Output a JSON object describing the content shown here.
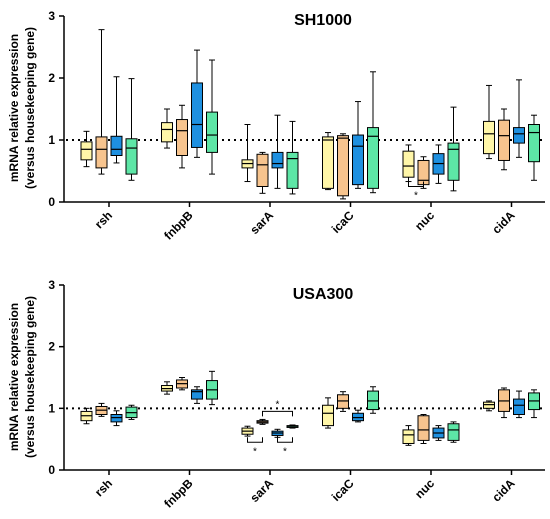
{
  "chart_data": [
    {
      "type": "boxplot",
      "title": "SH1000",
      "ylabel_line1": "mRNA relative expression",
      "ylabel_line2": "(versus housekeeping gene)",
      "ylim": [
        0,
        3
      ],
      "yticks": [
        "0",
        "1",
        "2",
        "3"
      ],
      "reference_line": 1,
      "categories": [
        "rsh",
        "fnbpB",
        "sarA",
        "icaC",
        "nuc",
        "cidA"
      ],
      "series_colors": [
        "#FFF6A8",
        "#F7C48E",
        "#1E90E0",
        "#5DE6A6"
      ],
      "boxes": [
        [
          [
            0.57,
            0.68,
            0.85,
            0.97,
            1.14
          ],
          [
            0.45,
            0.55,
            0.85,
            1.05,
            2.78
          ],
          [
            0.63,
            0.75,
            0.85,
            1.06,
            2.02
          ],
          [
            0.35,
            0.45,
            0.87,
            1.02,
            1.99
          ]
        ],
        [
          [
            0.87,
            0.97,
            1.17,
            1.28,
            1.5
          ],
          [
            0.55,
            0.75,
            1.15,
            1.33,
            1.56
          ],
          [
            0.72,
            0.88,
            1.25,
            1.92,
            2.45
          ],
          [
            0.45,
            0.8,
            1.08,
            1.45,
            2.29
          ]
        ],
        [
          [
            0.33,
            0.55,
            0.62,
            0.68,
            1.25
          ],
          [
            0.14,
            0.25,
            0.6,
            0.77,
            0.8
          ],
          [
            0.22,
            0.55,
            0.62,
            0.8,
            1.4
          ],
          [
            0.13,
            0.22,
            0.7,
            0.8,
            1.3
          ]
        ],
        [
          [
            0.2,
            0.22,
            1.0,
            1.05,
            1.12
          ],
          [
            0.05,
            0.1,
            1.03,
            1.07,
            1.1
          ],
          [
            0.22,
            0.28,
            0.9,
            1.08,
            1.62
          ],
          [
            0.15,
            0.22,
            1.06,
            1.2,
            2.1
          ]
        ],
        [
          [
            0.33,
            0.4,
            0.58,
            0.82,
            0.92
          ],
          [
            0.22,
            0.28,
            0.35,
            0.67,
            0.73
          ],
          [
            0.3,
            0.45,
            0.62,
            0.78,
            0.92
          ],
          [
            0.18,
            0.35,
            0.85,
            0.95,
            1.53
          ]
        ],
        [
          [
            0.7,
            0.78,
            1.1,
            1.3,
            1.88
          ],
          [
            0.52,
            0.67,
            1.07,
            1.32,
            1.5
          ],
          [
            0.72,
            0.95,
            1.1,
            1.2,
            1.97
          ],
          [
            0.35,
            0.65,
            1.12,
            1.25,
            1.4
          ]
        ]
      ],
      "significance": [
        {
          "category": "nuc",
          "between": [
            0,
            1
          ],
          "label": "*",
          "side": "below",
          "y": 0.25
        }
      ]
    },
    {
      "type": "boxplot",
      "title": "USA300",
      "ylabel_line1": "mRNA relative expression",
      "ylabel_line2": "(versus housekeeping gene)",
      "ylim": [
        0,
        3
      ],
      "yticks": [
        "0",
        "1",
        "2",
        "3"
      ],
      "reference_line": 1,
      "categories": [
        "rsh",
        "fnbpB",
        "sarA",
        "icaC",
        "nuc",
        "cidA"
      ],
      "series_colors": [
        "#FFF6A8",
        "#F7C48E",
        "#1E90E0",
        "#5DE6A6"
      ],
      "boxes": [
        [
          [
            0.75,
            0.8,
            0.88,
            0.95,
            1.0
          ],
          [
            0.87,
            0.9,
            0.97,
            1.03,
            1.08
          ],
          [
            0.72,
            0.78,
            0.85,
            0.9,
            0.96
          ],
          [
            0.82,
            0.85,
            0.93,
            1.02,
            1.05
          ]
        ],
        [
          [
            1.23,
            1.28,
            1.32,
            1.37,
            1.43
          ],
          [
            1.3,
            1.33,
            1.4,
            1.46,
            1.5
          ],
          [
            1.08,
            1.15,
            1.27,
            1.3,
            1.35
          ],
          [
            1.06,
            1.15,
            1.3,
            1.45,
            1.6
          ]
        ],
        [
          [
            0.55,
            0.58,
            0.63,
            0.68,
            0.71
          ],
          [
            0.74,
            0.76,
            0.78,
            0.8,
            0.82
          ],
          [
            0.53,
            0.56,
            0.6,
            0.63,
            0.66
          ],
          [
            0.68,
            0.69,
            0.71,
            0.72,
            0.73
          ]
        ],
        [
          [
            0.68,
            0.72,
            0.92,
            1.05,
            1.17
          ],
          [
            0.95,
            1.0,
            1.12,
            1.22,
            1.27
          ],
          [
            0.78,
            0.8,
            0.85,
            0.92,
            0.97
          ],
          [
            0.92,
            0.98,
            1.12,
            1.28,
            1.35
          ]
        ],
        [
          [
            0.4,
            0.43,
            0.57,
            0.65,
            0.72
          ],
          [
            0.43,
            0.48,
            0.65,
            0.88,
            0.9
          ],
          [
            0.48,
            0.52,
            0.6,
            0.68,
            0.72
          ],
          [
            0.45,
            0.48,
            0.65,
            0.75,
            0.78
          ]
        ],
        [
          [
            0.96,
            1.0,
            1.06,
            1.1,
            1.12
          ],
          [
            0.85,
            0.95,
            1.12,
            1.3,
            1.33
          ],
          [
            0.85,
            0.9,
            1.05,
            1.15,
            1.28
          ],
          [
            0.85,
            0.98,
            1.12,
            1.25,
            1.3
          ]
        ]
      ],
      "significance": [
        {
          "category": "sarA",
          "between": [
            0,
            1
          ],
          "label": "*",
          "side": "below",
          "y": 0.45
        },
        {
          "category": "sarA",
          "between": [
            1,
            3
          ],
          "label": "*",
          "side": "above",
          "y": 0.95
        },
        {
          "category": "sarA",
          "between": [
            2,
            3
          ],
          "label": "*",
          "side": "below",
          "y": 0.45
        }
      ]
    }
  ]
}
